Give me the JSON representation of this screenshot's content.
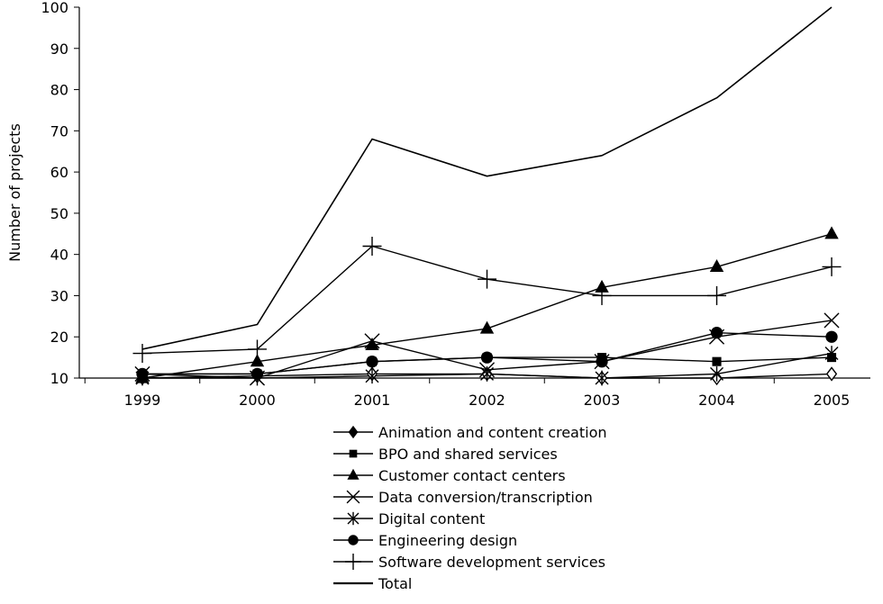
{
  "chart_data": {
    "type": "line",
    "title": "",
    "xlabel": "",
    "ylabel": "Number of projects",
    "x": [
      "1999",
      "2000",
      "2001",
      "2002",
      "2003",
      "2004",
      "2005"
    ],
    "ylim": [
      10,
      100
    ],
    "yticks": [
      10,
      20,
      30,
      40,
      50,
      60,
      70,
      80,
      90,
      100
    ],
    "grid": false,
    "legend_position": "bottom",
    "series": [
      {
        "name": "Animation and content creation",
        "marker": "diamond-open",
        "values": [
          10,
          10.5,
          11,
          11,
          10,
          10,
          11
        ]
      },
      {
        "name": "BPO and shared services",
        "marker": "square",
        "values": [
          11,
          11,
          14,
          15,
          15,
          14,
          15
        ]
      },
      {
        "name": "Customer contact centers",
        "marker": "triangle",
        "values": [
          10,
          14,
          18,
          22,
          32,
          37,
          45
        ]
      },
      {
        "name": "Data conversion/transcription",
        "marker": "x",
        "values": [
          11,
          10,
          19,
          12,
          14,
          20,
          24
        ]
      },
      {
        "name": "Digital content",
        "marker": "asterisk",
        "values": [
          10,
          10,
          10.5,
          11,
          10,
          11,
          16
        ]
      },
      {
        "name": "Engineering design",
        "marker": "circle",
        "values": [
          11,
          11,
          14,
          15,
          14,
          21,
          20
        ]
      },
      {
        "name": "Software development services",
        "marker": "plus",
        "values": [
          16,
          17,
          42,
          34,
          30,
          30,
          37
        ]
      },
      {
        "name": "Total",
        "marker": "none",
        "values": [
          17,
          23,
          68,
          59,
          64,
          78,
          100
        ]
      }
    ]
  }
}
